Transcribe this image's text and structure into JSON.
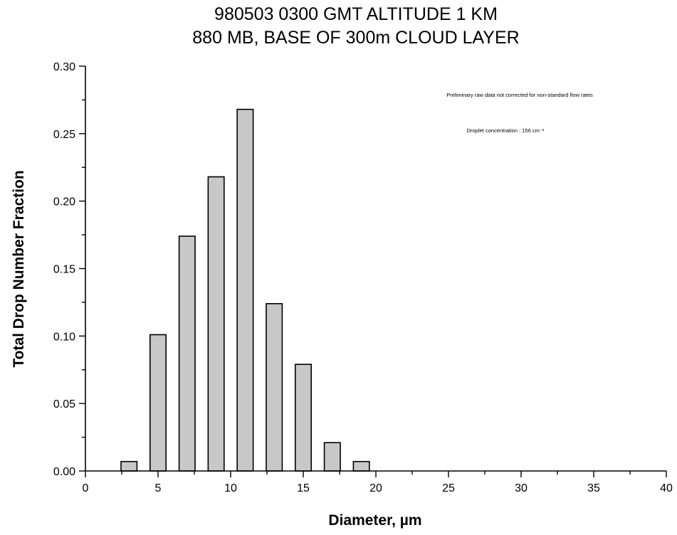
{
  "chart_data": {
    "type": "bar",
    "title": "980503 0300 GMT   ALTITUDE 1 KM",
    "subtitle": "880 MB, BASE OF 300m   CLOUD LAYER",
    "xlabel": "Diameter,  µm",
    "ylabel": "Total Drop Number Fraction",
    "xlim": [
      0,
      40
    ],
    "ylim": [
      0,
      0.3
    ],
    "x_ticks": [
      0,
      5,
      10,
      15,
      20,
      25,
      30,
      35,
      40
    ],
    "x_tick_labels": [
      "0",
      "5",
      "10",
      "15",
      "20",
      "25",
      "30",
      "35",
      "40"
    ],
    "y_ticks": [
      0,
      0.05,
      0.1,
      0.15,
      0.2,
      0.25,
      0.3
    ],
    "y_tick_labels": [
      "0.00",
      "0.05",
      "0.10",
      "0.15",
      "0.20",
      "0.25",
      "0.30"
    ],
    "bar_width": 1.1,
    "x": [
      3,
      5,
      7,
      9,
      11,
      13,
      15,
      17,
      19
    ],
    "values": [
      0.007,
      0.101,
      0.174,
      0.218,
      0.268,
      0.124,
      0.079,
      0.021,
      0.007
    ],
    "annotations": [
      "Preliminary raw data not corrected for non-standard flow rates",
      "Droplet concentration : 156 cm⁻³"
    ],
    "grid": false,
    "bar_color": "#c8c8c8"
  }
}
